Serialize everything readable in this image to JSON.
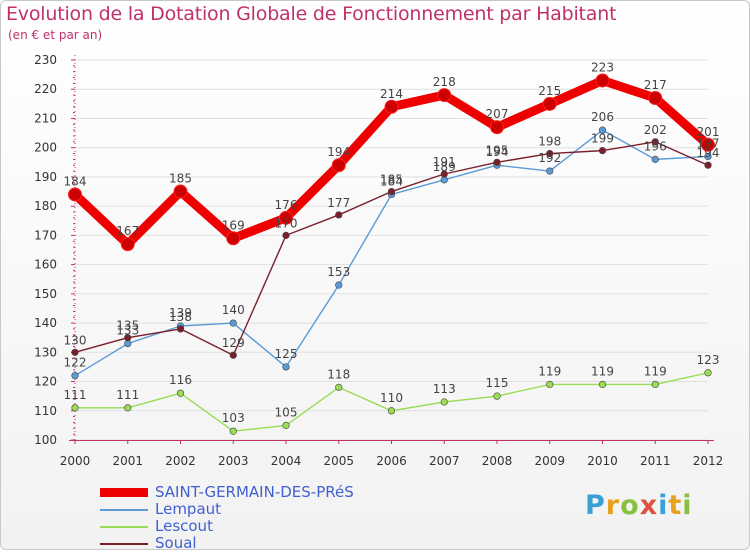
{
  "title": "Evolution de la Dotation Globale de Fonctionnement par Habitant",
  "subtitle": "(en € et par an)",
  "logo": {
    "letters": [
      "P",
      "r",
      "o",
      "x",
      "i",
      "t",
      "i"
    ],
    "colors": [
      "#3aa0d8",
      "#e8a020",
      "#88c040",
      "#e05040",
      "#3aa0d8",
      "#e8a020",
      "#88c040"
    ]
  },
  "chart_data": {
    "type": "line",
    "title": "Evolution de la Dotation Globale de Fonctionnement par Habitant",
    "ylabel": "(en € et par an)",
    "xlabel": "",
    "x": [
      "2000",
      "2001",
      "2002",
      "2003",
      "2004",
      "2005",
      "2006",
      "2007",
      "2008",
      "2009",
      "2010",
      "2011",
      "2012"
    ],
    "ylim": [
      100,
      230
    ],
    "yticks": [
      "100",
      "110",
      "120",
      "130",
      "140",
      "150",
      "160",
      "170",
      "180",
      "190",
      "200",
      "210",
      "220",
      "230"
    ],
    "series": [
      {
        "name": "SAINT-GERMAIN-DES-PRéS",
        "color": "#ee0000",
        "values": [
          184,
          167,
          185,
          169,
          176,
          194,
          214,
          218,
          207,
          215,
          223,
          217,
          201
        ]
      },
      {
        "name": "Lempaut",
        "color": "#5b9bd5",
        "values": [
          122,
          133,
          139,
          140,
          125,
          153,
          184,
          189,
          194,
          192,
          206,
          196,
          197
        ]
      },
      {
        "name": "Lescout",
        "color": "#99dd55",
        "values": [
          111,
          111,
          116,
          103,
          105,
          118,
          110,
          113,
          115,
          119,
          119,
          119,
          123
        ]
      },
      {
        "name": "Soual",
        "color": "#7b1f2a",
        "values": [
          130,
          135,
          138,
          129,
          170,
          177,
          185,
          191,
          195,
          198,
          199,
          202,
          194
        ]
      }
    ]
  }
}
